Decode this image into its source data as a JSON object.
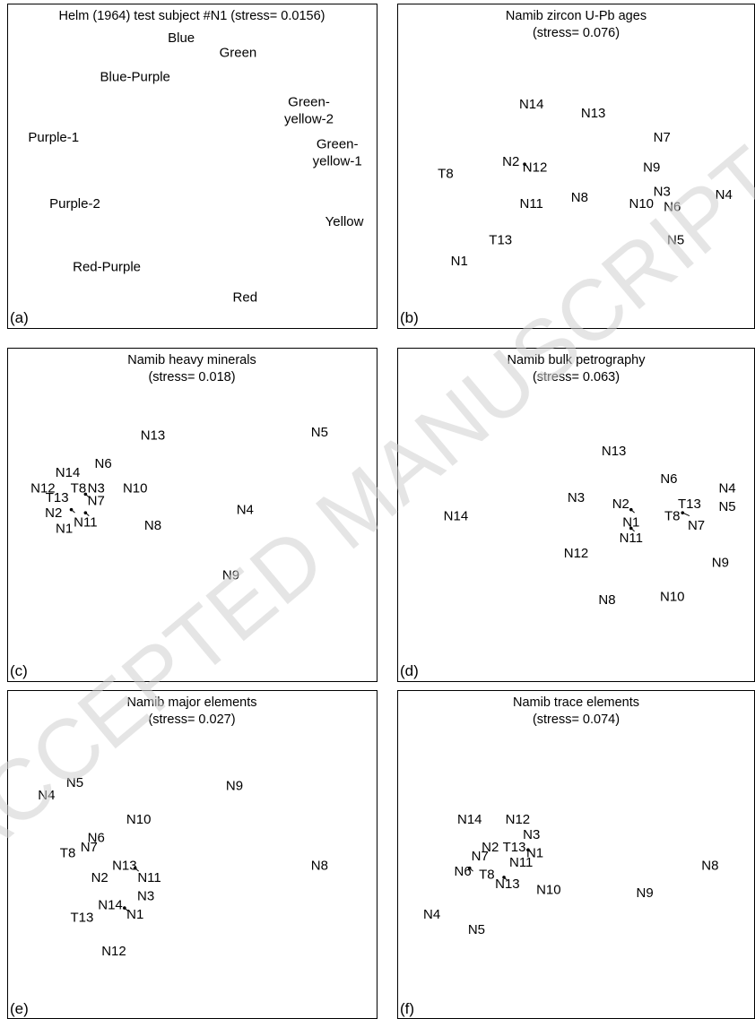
{
  "watermark": "ACCEPTED MANUSCRIPT",
  "chart_data": [
    {
      "type": "scatter",
      "id": "a",
      "tag": "(a)",
      "title": [
        "Helm (1964) test subject #N1 (stress= 0.0156)"
      ],
      "labels": [
        {
          "text": [
            "Blue"
          ],
          "x": 0.47,
          "y": 0.92
        },
        {
          "text": [
            "Green"
          ],
          "x": 0.63,
          "y": 0.87
        },
        {
          "text": [
            "Blue-Purple"
          ],
          "x": 0.34,
          "y": 0.79
        },
        {
          "text": [
            "Green-",
            "yellow-2"
          ],
          "x": 0.83,
          "y": 0.68
        },
        {
          "text": [
            "Purple-1"
          ],
          "x": 0.11,
          "y": 0.59
        },
        {
          "text": [
            "Green-",
            "yellow-1"
          ],
          "x": 0.91,
          "y": 0.54
        },
        {
          "text": [
            "Purple-2"
          ],
          "x": 0.17,
          "y": 0.37
        },
        {
          "text": [
            "Yellow"
          ],
          "x": 0.93,
          "y": 0.31
        },
        {
          "text": [
            "Red-Purple"
          ],
          "x": 0.26,
          "y": 0.16
        },
        {
          "text": [
            "Red"
          ],
          "x": 0.65,
          "y": 0.06
        }
      ],
      "links": []
    },
    {
      "type": "scatter",
      "id": "b",
      "tag": "(b)",
      "title": [
        "Namib zircon U-Pb ages",
        "(stress= 0.076)"
      ],
      "labels": [
        {
          "text": [
            "N14"
          ],
          "x": 0.37,
          "y": 0.7
        },
        {
          "text": [
            "N13"
          ],
          "x": 0.55,
          "y": 0.67
        },
        {
          "text": [
            "N7"
          ],
          "x": 0.75,
          "y": 0.59
        },
        {
          "text": [
            "N2"
          ],
          "x": 0.31,
          "y": 0.51
        },
        {
          "text": [
            "N12"
          ],
          "x": 0.38,
          "y": 0.49
        },
        {
          "text": [
            "N9"
          ],
          "x": 0.72,
          "y": 0.49
        },
        {
          "text": [
            "T8"
          ],
          "x": 0.12,
          "y": 0.47
        },
        {
          "text": [
            "N8"
          ],
          "x": 0.51,
          "y": 0.39
        },
        {
          "text": [
            "N11"
          ],
          "x": 0.37,
          "y": 0.37
        },
        {
          "text": [
            "N3"
          ],
          "x": 0.75,
          "y": 0.41
        },
        {
          "text": [
            "N4"
          ],
          "x": 0.93,
          "y": 0.4
        },
        {
          "text": [
            "N10"
          ],
          "x": 0.69,
          "y": 0.37
        },
        {
          "text": [
            "N6"
          ],
          "x": 0.78,
          "y": 0.36
        },
        {
          "text": [
            "T13"
          ],
          "x": 0.28,
          "y": 0.25
        },
        {
          "text": [
            "N5"
          ],
          "x": 0.79,
          "y": 0.25
        },
        {
          "text": [
            "N1"
          ],
          "x": 0.16,
          "y": 0.18
        }
      ],
      "links": [
        {
          "from": [
            0.35,
            0.5
          ],
          "to": [
            0.36,
            0.49
          ]
        }
      ]
    },
    {
      "type": "scatter",
      "id": "c",
      "tag": "(c)",
      "title": [
        "Namib heavy minerals",
        "(stress= 0.018)"
      ],
      "labels": [
        {
          "text": [
            "N5"
          ],
          "x": 0.86,
          "y": 0.76
        },
        {
          "text": [
            "N13"
          ],
          "x": 0.39,
          "y": 0.75
        },
        {
          "text": [
            "N6"
          ],
          "x": 0.25,
          "y": 0.66
        },
        {
          "text": [
            "N14"
          ],
          "x": 0.15,
          "y": 0.63
        },
        {
          "text": [
            "N12"
          ],
          "x": 0.08,
          "y": 0.58
        },
        {
          "text": [
            "T8"
          ],
          "x": 0.18,
          "y": 0.58
        },
        {
          "text": [
            "N3"
          ],
          "x": 0.23,
          "y": 0.58
        },
        {
          "text": [
            "N10"
          ],
          "x": 0.34,
          "y": 0.58
        },
        {
          "text": [
            "T13"
          ],
          "x": 0.12,
          "y": 0.55
        },
        {
          "text": [
            "N7"
          ],
          "x": 0.23,
          "y": 0.54
        },
        {
          "text": [
            "N4"
          ],
          "x": 0.65,
          "y": 0.51
        },
        {
          "text": [
            "N2"
          ],
          "x": 0.11,
          "y": 0.5
        },
        {
          "text": [
            "N11"
          ],
          "x": 0.2,
          "y": 0.47
        },
        {
          "text": [
            "N1"
          ],
          "x": 0.14,
          "y": 0.45
        },
        {
          "text": [
            "N8"
          ],
          "x": 0.39,
          "y": 0.46
        },
        {
          "text": [
            "N9"
          ],
          "x": 0.61,
          "y": 0.3
        }
      ],
      "links": [
        {
          "from": [
            0.2,
            0.56
          ],
          "to": [
            0.21,
            0.55
          ]
        },
        {
          "from": [
            0.16,
            0.51
          ],
          "to": [
            0.17,
            0.5
          ]
        },
        {
          "from": [
            0.2,
            0.5
          ],
          "to": [
            0.21,
            0.49
          ]
        }
      ]
    },
    {
      "type": "scatter",
      "id": "d",
      "tag": "(d)",
      "title": [
        "Namib bulk petrography",
        "(stress= 0.063)"
      ],
      "labels": [
        {
          "text": [
            "N13"
          ],
          "x": 0.61,
          "y": 0.7
        },
        {
          "text": [
            "N6"
          ],
          "x": 0.77,
          "y": 0.61
        },
        {
          "text": [
            "N4"
          ],
          "x": 0.94,
          "y": 0.58
        },
        {
          "text": [
            "N3"
          ],
          "x": 0.5,
          "y": 0.55
        },
        {
          "text": [
            "N2"
          ],
          "x": 0.63,
          "y": 0.53
        },
        {
          "text": [
            "T13"
          ],
          "x": 0.83,
          "y": 0.53
        },
        {
          "text": [
            "N5"
          ],
          "x": 0.94,
          "y": 0.52
        },
        {
          "text": [
            "N14"
          ],
          "x": 0.15,
          "y": 0.49
        },
        {
          "text": [
            "T8"
          ],
          "x": 0.78,
          "y": 0.49
        },
        {
          "text": [
            "N1"
          ],
          "x": 0.66,
          "y": 0.47
        },
        {
          "text": [
            "N7"
          ],
          "x": 0.85,
          "y": 0.46
        },
        {
          "text": [
            "N11"
          ],
          "x": 0.66,
          "y": 0.42
        },
        {
          "text": [
            "N12"
          ],
          "x": 0.5,
          "y": 0.37
        },
        {
          "text": [
            "N9"
          ],
          "x": 0.92,
          "y": 0.34
        },
        {
          "text": [
            "N8"
          ],
          "x": 0.59,
          "y": 0.22
        },
        {
          "text": [
            "N10"
          ],
          "x": 0.78,
          "y": 0.23
        }
      ],
      "links": [
        {
          "from": [
            0.66,
            0.51
          ],
          "to": [
            0.67,
            0.5
          ]
        },
        {
          "from": [
            0.66,
            0.45
          ],
          "to": [
            0.67,
            0.44
          ]
        },
        {
          "from": [
            0.81,
            0.5
          ],
          "to": [
            0.83,
            0.49
          ]
        }
      ]
    },
    {
      "type": "scatter",
      "id": "e",
      "tag": "(e)",
      "title": [
        "Namib major elements",
        "(stress= 0.027)"
      ],
      "labels": [
        {
          "text": [
            "N5"
          ],
          "x": 0.17,
          "y": 0.73
        },
        {
          "text": [
            "N9"
          ],
          "x": 0.62,
          "y": 0.72
        },
        {
          "text": [
            "N4"
          ],
          "x": 0.09,
          "y": 0.69
        },
        {
          "text": [
            "N10"
          ],
          "x": 0.35,
          "y": 0.61
        },
        {
          "text": [
            "N6"
          ],
          "x": 0.23,
          "y": 0.55
        },
        {
          "text": [
            "N7"
          ],
          "x": 0.21,
          "y": 0.52
        },
        {
          "text": [
            "T8"
          ],
          "x": 0.15,
          "y": 0.5
        },
        {
          "text": [
            "N13"
          ],
          "x": 0.31,
          "y": 0.46
        },
        {
          "text": [
            "N8"
          ],
          "x": 0.86,
          "y": 0.46
        },
        {
          "text": [
            "N2"
          ],
          "x": 0.24,
          "y": 0.42
        },
        {
          "text": [
            "N11"
          ],
          "x": 0.38,
          "y": 0.42
        },
        {
          "text": [
            "N3"
          ],
          "x": 0.37,
          "y": 0.36
        },
        {
          "text": [
            "N14"
          ],
          "x": 0.27,
          "y": 0.33
        },
        {
          "text": [
            "T13"
          ],
          "x": 0.19,
          "y": 0.29
        },
        {
          "text": [
            "N1"
          ],
          "x": 0.34,
          "y": 0.3
        },
        {
          "text": [
            "N12"
          ],
          "x": 0.28,
          "y": 0.18
        }
      ],
      "links": [
        {
          "from": [
            0.34,
            0.45
          ],
          "to": [
            0.35,
            0.44
          ]
        },
        {
          "from": [
            0.31,
            0.32
          ],
          "to": [
            0.32,
            0.31
          ]
        }
      ]
    },
    {
      "type": "scatter",
      "id": "f",
      "tag": "(f)",
      "title": [
        "Namib trace elements",
        "(stress= 0.074)"
      ],
      "labels": [
        {
          "text": [
            "N14"
          ],
          "x": 0.19,
          "y": 0.61
        },
        {
          "text": [
            "N12"
          ],
          "x": 0.33,
          "y": 0.61
        },
        {
          "text": [
            "N3"
          ],
          "x": 0.37,
          "y": 0.56
        },
        {
          "text": [
            "N2"
          ],
          "x": 0.25,
          "y": 0.52
        },
        {
          "text": [
            "T13"
          ],
          "x": 0.32,
          "y": 0.52
        },
        {
          "text": [
            "N7"
          ],
          "x": 0.22,
          "y": 0.49
        },
        {
          "text": [
            "N1"
          ],
          "x": 0.38,
          "y": 0.5
        },
        {
          "text": [
            "N11"
          ],
          "x": 0.34,
          "y": 0.47
        },
        {
          "text": [
            "N8"
          ],
          "x": 0.89,
          "y": 0.46
        },
        {
          "text": [
            "N6"
          ],
          "x": 0.17,
          "y": 0.44
        },
        {
          "text": [
            "T8"
          ],
          "x": 0.24,
          "y": 0.43
        },
        {
          "text": [
            "N13"
          ],
          "x": 0.3,
          "y": 0.4
        },
        {
          "text": [
            "N10"
          ],
          "x": 0.42,
          "y": 0.38
        },
        {
          "text": [
            "N9"
          ],
          "x": 0.7,
          "y": 0.37
        },
        {
          "text": [
            "N4"
          ],
          "x": 0.08,
          "y": 0.3
        },
        {
          "text": [
            "N5"
          ],
          "x": 0.21,
          "y": 0.25
        }
      ],
      "links": [
        {
          "from": [
            0.19,
            0.45
          ],
          "to": [
            0.2,
            0.44
          ]
        },
        {
          "from": [
            0.36,
            0.51
          ],
          "to": [
            0.37,
            0.5
          ]
        },
        {
          "from": [
            0.29,
            0.42
          ],
          "to": [
            0.3,
            0.41
          ]
        }
      ]
    }
  ]
}
